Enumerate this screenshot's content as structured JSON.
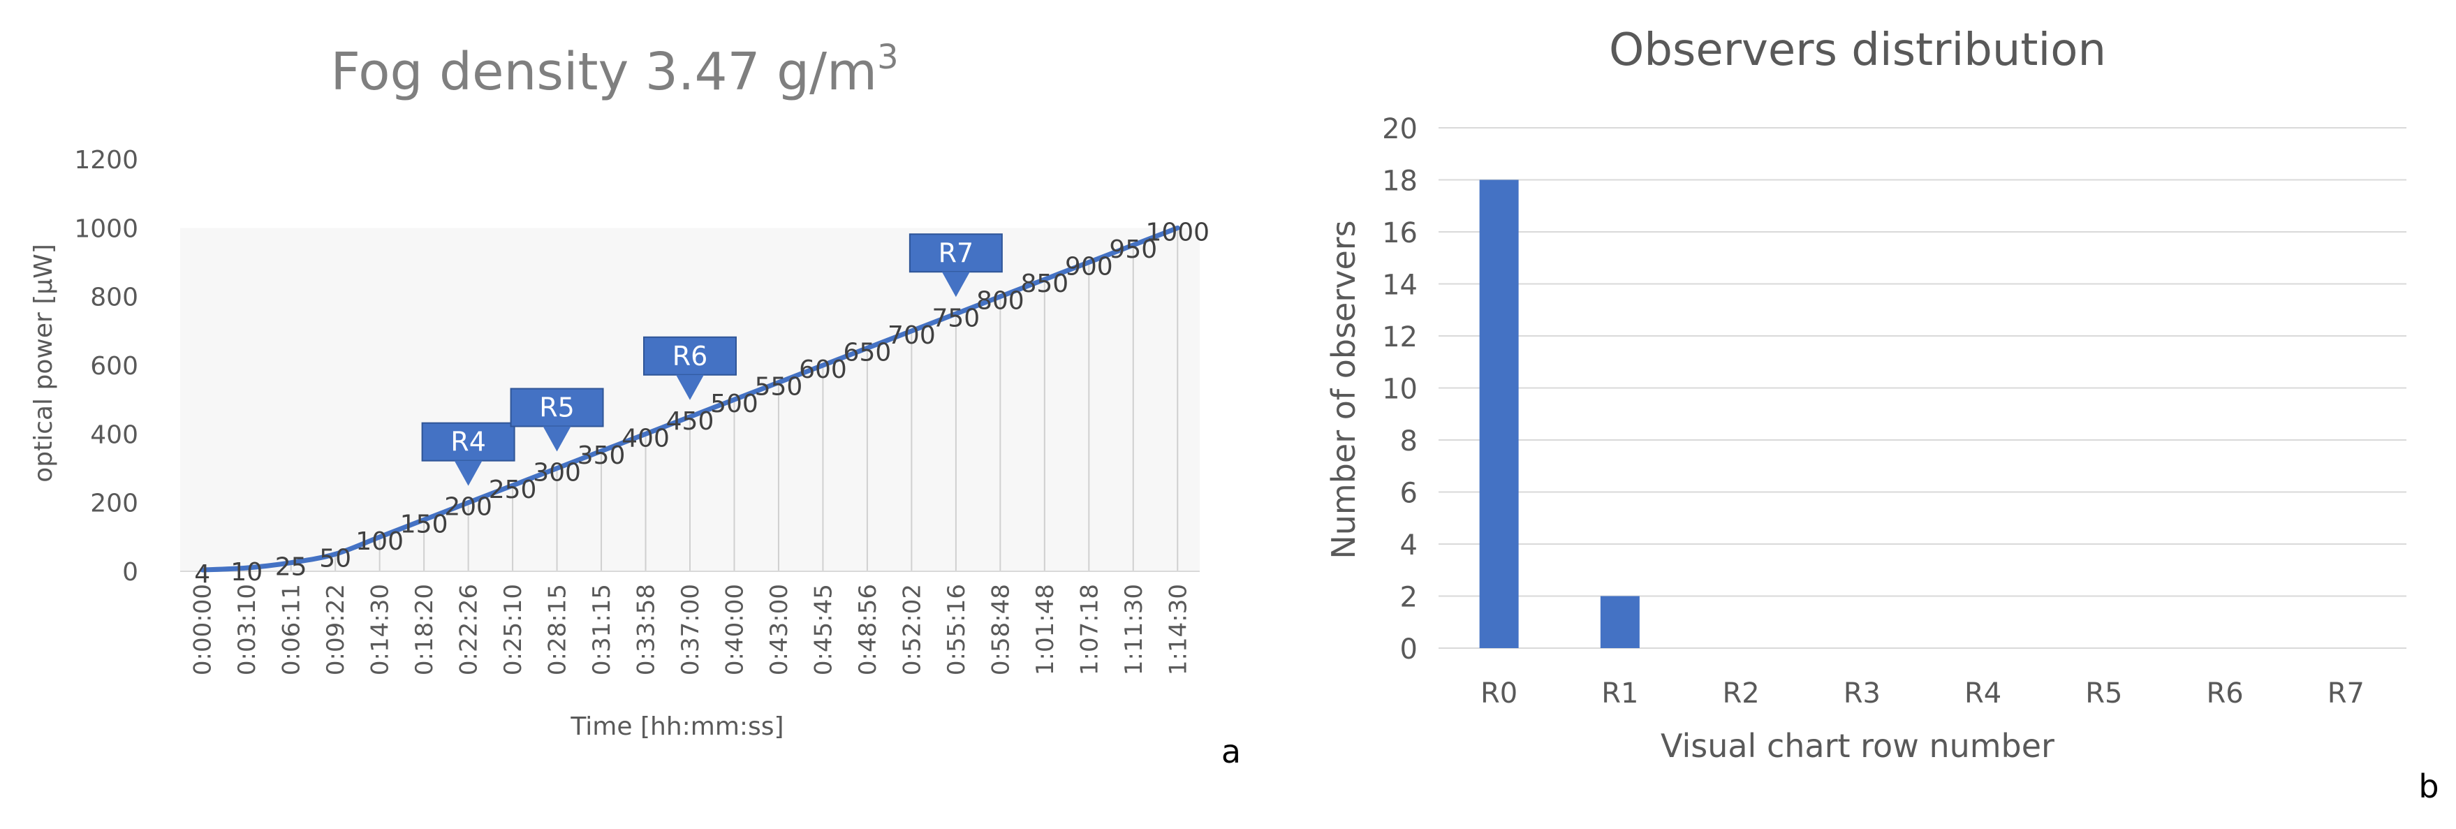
{
  "chart_data": [
    {
      "type": "line",
      "title": "Fog density 3.47 g/m",
      "title_superscript": "3",
      "xlabel": "Time [hh:mm:ss]",
      "ylabel": "optical power [µW]",
      "ylim": [
        0,
        1200
      ],
      "yticks": [
        "0",
        "200",
        "400",
        "600",
        "800",
        "1000",
        "1200"
      ],
      "grid": "vertical drop lines to each point",
      "categories": [
        "0:00:00",
        "0:03:10",
        "0:06:11",
        "0:09:22",
        "0:14:30",
        "0:18:20",
        "0:22:26",
        "0:25:10",
        "0:28:15",
        "0:31:15",
        "0:33:58",
        "0:37:00",
        "0:40:00",
        "0:43:00",
        "0:45:45",
        "0:48:56",
        "0:52:02",
        "0:55:16",
        "0:58:48",
        "1:01:48",
        "1:07:18",
        "1:11:30",
        "1:14:30"
      ],
      "series": [
        {
          "values": [
            4,
            10,
            25,
            50,
            100,
            150,
            200,
            250,
            300,
            350,
            400,
            450,
            500,
            550,
            600,
            650,
            700,
            750,
            800,
            850,
            900,
            950,
            1000
          ],
          "color": "#4472c4"
        }
      ],
      "data_labels": [
        "4",
        "10",
        "25",
        "50",
        "100",
        "150",
        "200",
        "250",
        "300",
        "350",
        "400",
        "450",
        "500",
        "550",
        "600",
        "650",
        "700",
        "750",
        "800",
        "850",
        "900",
        "950",
        "1000"
      ],
      "annotations": [
        {
          "text": "R4",
          "category": "0:22:26"
        },
        {
          "text": "R5",
          "category": "0:28:15"
        },
        {
          "text": "R6",
          "category": "0:37:00"
        },
        {
          "text": "R7",
          "category": "0:55:16"
        }
      ],
      "annotation_color": "#4472c4",
      "panel_label": "a"
    },
    {
      "type": "bar",
      "title": "Observers distribution",
      "xlabel": "Visual chart row number",
      "ylabel": "Number of observers",
      "ylim": [
        0,
        20
      ],
      "yticks": [
        "0",
        "2",
        "4",
        "6",
        "8",
        "10",
        "12",
        "14",
        "16",
        "18",
        "20"
      ],
      "grid": "horizontal",
      "categories": [
        "R0",
        "R1",
        "R2",
        "R3",
        "R4",
        "R5",
        "R6",
        "R7"
      ],
      "series": [
        {
          "values": [
            18,
            2,
            0,
            0,
            0,
            0,
            0,
            0
          ],
          "color": "#4472c4"
        }
      ],
      "panel_label": "b"
    }
  ]
}
